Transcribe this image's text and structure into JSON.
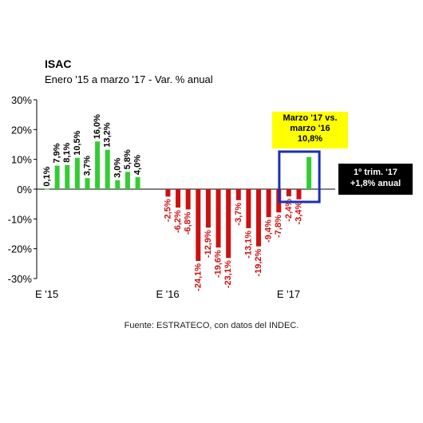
{
  "title": "ISAC",
  "subtitle": "Enero '15 a marzo '17 - Var. % anual",
  "source": "Fuente: ESTRATECO, con datos del INDEC.",
  "callout_main": [
    "Marzo '17 vs.",
    "marzo '16",
    "10,8%"
  ],
  "callout_quarter": [
    "1º trim. '17",
    "+1,8% anual"
  ],
  "colors": {
    "positive": "#33cc33",
    "negative": "#cc1111",
    "highlight_box": "#1a2fb5",
    "callout_yellow": "#ffff00",
    "label_negative": "#cc1111"
  },
  "chart_data": {
    "type": "bar",
    "ylim": [
      -30,
      30
    ],
    "yticks": [
      "-30%",
      "-20%",
      "-10%",
      "0%",
      "10%",
      "20%",
      "30%"
    ],
    "ytick_values": [
      -30,
      -20,
      -10,
      0,
      10,
      20,
      30
    ],
    "xtick_labels": [
      {
        "index": 0,
        "label": "E '15"
      },
      {
        "index": 12,
        "label": "E '16"
      },
      {
        "index": 24,
        "label": "E '17"
      }
    ],
    "grid": false,
    "values": [
      0.1,
      7.9,
      8.1,
      10.5,
      3.7,
      16.0,
      13.2,
      3.0,
      5.8,
      4.0,
      null,
      null,
      -2.5,
      -6.2,
      -6.8,
      -24.1,
      -12.9,
      -19.6,
      -23.1,
      -3.7,
      -13.1,
      -19.2,
      -9.4,
      -7.8,
      -2.4,
      -3.4,
      10.8
    ],
    "labels": [
      "0,1%",
      "7,9%",
      "8,1%",
      "10,5%",
      "3,7%",
      "16,0%",
      "13,2%",
      "3,0%",
      "5,8%",
      "4,0%",
      "",
      "",
      "-2,5%",
      "-6,2%",
      "-6,8%",
      "-24,1%",
      "-12,9%",
      "-19,6%",
      "-23,1%",
      "-3,7%",
      "-13,1%",
      "-19,2%",
      "-9,4%",
      "-7,8%",
      "-2,4%",
      "-3,4%",
      ""
    ],
    "highlight_range": {
      "from_index": 24,
      "to_index": 26
    }
  }
}
